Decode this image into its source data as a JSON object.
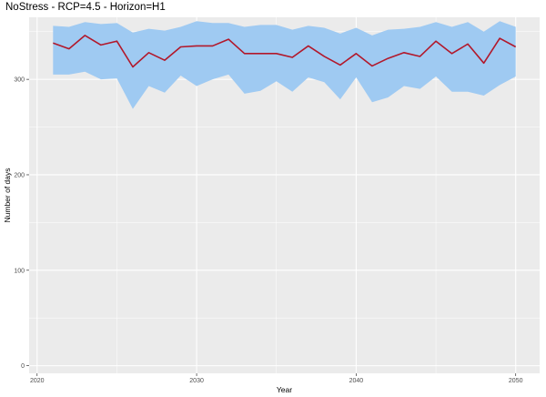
{
  "chart_data": {
    "type": "line",
    "title": "NoStress - RCP=4.5 - Horizon=H1",
    "xlabel": "Year",
    "ylabel": "Number of days",
    "xlim": [
      2019.5,
      2051.5
    ],
    "ylim": [
      -8,
      365
    ],
    "x_ticks": [
      2020,
      2030,
      2040,
      2050
    ],
    "y_ticks": [
      0,
      100,
      200,
      300
    ],
    "grid": true,
    "legend": "none",
    "x": [
      2021,
      2022,
      2023,
      2024,
      2025,
      2026,
      2027,
      2028,
      2029,
      2030,
      2031,
      2032,
      2033,
      2034,
      2035,
      2036,
      2037,
      2038,
      2039,
      2040,
      2041,
      2042,
      2043,
      2044,
      2045,
      2046,
      2047,
      2048,
      2049,
      2050
    ],
    "series": [
      {
        "values": [
          338,
          332,
          346,
          336,
          340,
          313,
          328,
          320,
          334,
          335,
          335,
          342,
          327,
          327,
          327,
          323,
          335,
          324,
          315,
          327,
          314,
          322,
          328,
          324,
          340,
          327,
          337,
          317,
          343,
          334
        ],
        "color": "#b2182b"
      }
    ],
    "band": {
      "upper": [
        356,
        355,
        360,
        358,
        359,
        349,
        353,
        351,
        355,
        361,
        359,
        359,
        355,
        357,
        357,
        352,
        356,
        354,
        348,
        354,
        346,
        352,
        353,
        355,
        360,
        355,
        360,
        350,
        361,
        355
      ],
      "lower": [
        305,
        305,
        308,
        300,
        301,
        269,
        293,
        286,
        304,
        293,
        300,
        305,
        285,
        288,
        298,
        287,
        302,
        297,
        279,
        302,
        276,
        281,
        293,
        290,
        303,
        287,
        287,
        283,
        294,
        303
      ],
      "color": "#9fcaf2"
    },
    "panel_color": "#ebebeb",
    "grid_color": "#ffffff"
  }
}
